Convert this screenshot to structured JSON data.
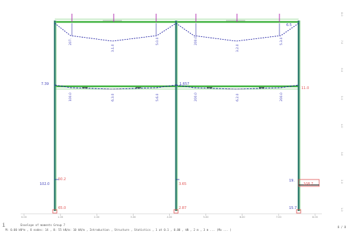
{
  "status": {
    "title": "Envelope of moments Group 7",
    "detail": "M: 0.00 kN*m , 8 nodes: 14 , 8: 55 kN/m: 10 kN/m , Introduction , Structure , Statistics , 1 at 0.1 , 0.00 , kN , 2 m , 3 m ... (Ma ... )",
    "corner": "i",
    "page": "8 / 8"
  },
  "moments": {
    "left_bottom": "102.0",
    "left_bottom_red": "50.2",
    "left_base": "65.0",
    "mid_bottom": "3.65",
    "mid_base": "2.87",
    "right_bottom": "19.",
    "right_bottom_red": "108.7",
    "right_base": "15.7",
    "left_mid": "7.39",
    "mid_mid": "1.657",
    "right_mid": "11.0",
    "top_right": "6.5",
    "top_left": "",
    "b2_1": "100.0",
    "b2_2": "6.3.0",
    "b2_3": "5.6.0",
    "b2_4": "200.0",
    "b2_5": "6.2.0",
    "b2_6": "200.0",
    "b1_1": "207.",
    "b1_2": "3.1.0",
    "b1_3": "5.0.0",
    "b1_4": "200.0",
    "b1_5": "3.2.0",
    "b1_6": "5.3.0"
  },
  "axis": {
    "x_ticks": [
      "0.00",
      "1.00",
      "2.00",
      "3.00",
      "4.00",
      "5.00",
      "6.00",
      "7.00",
      "8.00"
    ],
    "y_ticks": [
      "8.0",
      "7.0",
      "6.0",
      "5.0",
      "4.0",
      "3.0",
      "2.0",
      "1.0"
    ]
  },
  "colors": {
    "member": "#3db13d",
    "column_dark": "#2e7d6e",
    "diagram": "#1a1aa0",
    "label": "#4444bb",
    "red": "#e05050",
    "magenta": "#b030b0",
    "axis": "#999999"
  }
}
